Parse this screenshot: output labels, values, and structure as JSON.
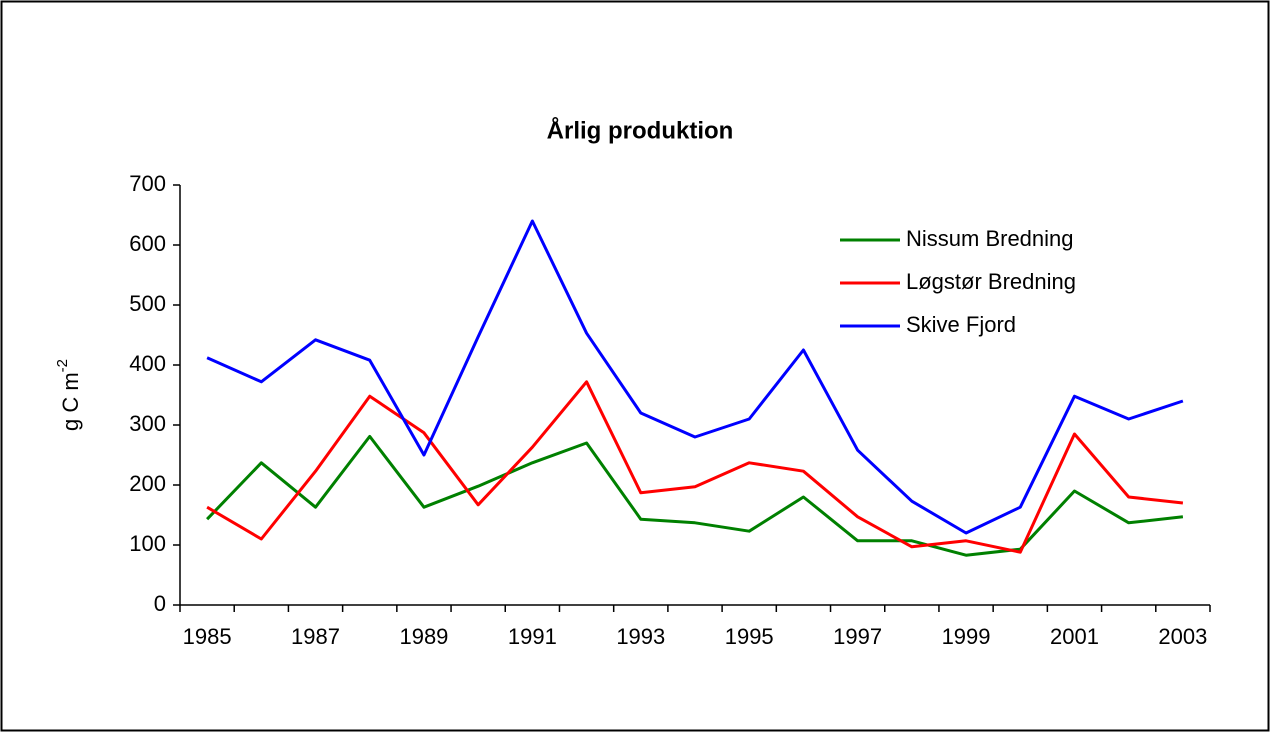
{
  "chart_data": {
    "type": "line",
    "title": "Årlig produktion",
    "ylabel": "g C m",
    "ylabel_superscript": "-2",
    "categories": [
      "1985",
      null,
      "1987",
      null,
      "1989",
      null,
      "1991",
      null,
      "1993",
      null,
      "1995",
      null,
      "1997",
      null,
      "1999",
      null,
      "2001",
      null,
      "2003"
    ],
    "series": [
      {
        "name": "Nissum Bredning",
        "color": "#008000",
        "values": [
          143,
          237,
          163,
          281,
          163,
          198,
          237,
          270,
          143,
          137,
          123,
          180,
          107,
          107,
          83,
          93,
          190,
          137,
          147
        ]
      },
      {
        "name": "Løgstør Bredning",
        "color": "#ff0000",
        "values": [
          163,
          110,
          223,
          348,
          287,
          167,
          263,
          372,
          187,
          197,
          237,
          223,
          147,
          97,
          107,
          88,
          285,
          180,
          170
        ]
      },
      {
        "name": "Skive Fjord",
        "color": "#0000ff",
        "values": [
          412,
          372,
          442,
          408,
          250,
          447,
          640,
          453,
          320,
          280,
          310,
          425,
          258,
          173,
          120,
          163,
          348,
          310,
          340
        ]
      }
    ],
    "ylim": [
      0,
      700
    ],
    "yticks": [
      0,
      100,
      200,
      300,
      400,
      500,
      600,
      700
    ],
    "grid": false,
    "legend": "upper right"
  }
}
